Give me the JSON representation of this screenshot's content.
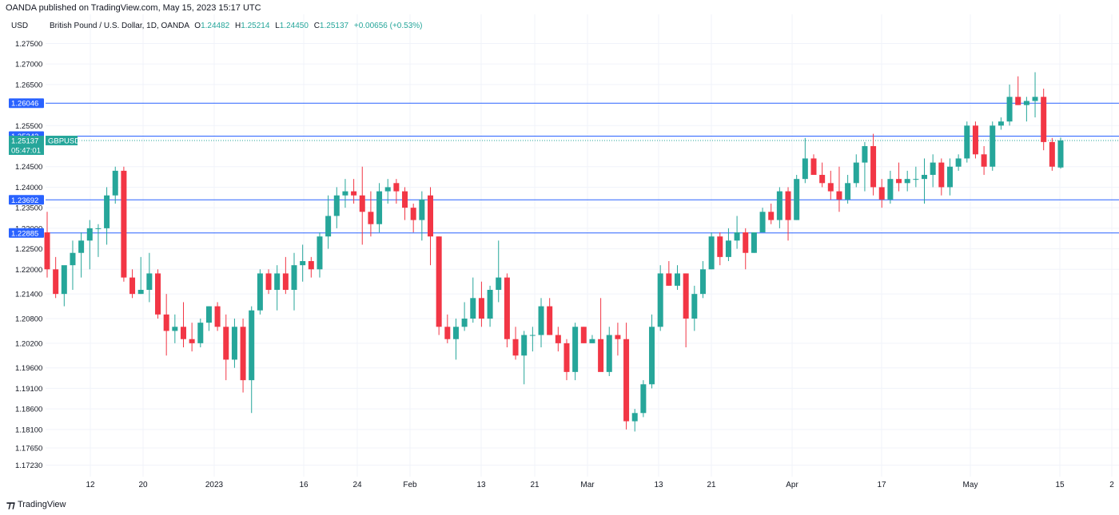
{
  "header": {
    "published": "OANDA published on TradingView.com, May 15, 2023 15:17 UTC",
    "currency": "USD",
    "instrument": "British Pound / U.S. Dollar, 1D, OANDA",
    "ohlc": {
      "o_label": "O",
      "o": "1.24482",
      "h_label": "H",
      "h": "1.25214",
      "l_label": "L",
      "l": "1.24450",
      "c_label": "C",
      "c": "1.25137",
      "change": "+0.00656 (+0.53%)"
    }
  },
  "footer": {
    "brand": "TradingView"
  },
  "colors": {
    "up": "#26a69a",
    "down": "#f23645",
    "level_line": "#2962ff",
    "label_bg": "#2962ff",
    "grid": "#f0f3fa"
  },
  "chart_data": {
    "type": "candlestick",
    "ylim": [
      1.1695,
      1.2782
    ],
    "y_ticks": [
      "1.27500",
      "1.27000",
      "1.26500",
      "1.26046",
      "1.25500",
      "1.25243",
      "1.24500",
      "1.24000",
      "1.23692",
      "1.23500",
      "1.23000",
      "1.22885",
      "1.22500",
      "1.22000",
      "1.21400",
      "1.20800",
      "1.20200",
      "1.19600",
      "1.19100",
      "1.18600",
      "1.18100",
      "1.17650",
      "1.17230"
    ],
    "x_labels": [
      "12",
      "20",
      "2023",
      "16",
      "24",
      "Feb",
      "13",
      "21",
      "Mar",
      "13",
      "21",
      "Apr",
      "17",
      "May",
      "15",
      "2"
    ],
    "horizontal_levels": [
      {
        "value": 1.26046,
        "label": "1.26046"
      },
      {
        "value": 1.25243,
        "label": "1.25243"
      },
      {
        "value": 1.23692,
        "label": "1.23692"
      },
      {
        "value": 1.22885,
        "label": "1.22885"
      }
    ],
    "last_price": {
      "value": "1.25137",
      "symbol": "GBPUSD",
      "countdown": "05:47:01"
    },
    "candles": [
      [
        1.229,
        1.234,
        1.218,
        1.22
      ],
      [
        1.22,
        1.223,
        1.213,
        1.214
      ],
      [
        1.214,
        1.22,
        1.211,
        1.221
      ],
      [
        1.221,
        1.227,
        1.215,
        1.224
      ],
      [
        1.224,
        1.229,
        1.218,
        1.227
      ],
      [
        1.227,
        1.232,
        1.22,
        1.23
      ],
      [
        1.23,
        1.231,
        1.223,
        1.23
      ],
      [
        1.23,
        1.24,
        1.226,
        1.238
      ],
      [
        1.238,
        1.245,
        1.236,
        1.244
      ],
      [
        1.244,
        1.245,
        1.217,
        1.218
      ],
      [
        1.218,
        1.22,
        1.213,
        1.214
      ],
      [
        1.214,
        1.223,
        1.214,
        1.215
      ],
      [
        1.215,
        1.224,
        1.212,
        1.219
      ],
      [
        1.219,
        1.22,
        1.208,
        1.209
      ],
      [
        1.209,
        1.214,
        1.199,
        1.205
      ],
      [
        1.205,
        1.209,
        1.202,
        1.206
      ],
      [
        1.206,
        1.212,
        1.201,
        1.203
      ],
      [
        1.203,
        1.207,
        1.2,
        1.202
      ],
      [
        1.202,
        1.208,
        1.201,
        1.207
      ],
      [
        1.207,
        1.211,
        1.205,
        1.211
      ],
      [
        1.211,
        1.212,
        1.205,
        1.206
      ],
      [
        1.206,
        1.209,
        1.193,
        1.198
      ],
      [
        1.198,
        1.208,
        1.196,
        1.206
      ],
      [
        1.206,
        1.208,
        1.19,
        1.193
      ],
      [
        1.193,
        1.211,
        1.185,
        1.21
      ],
      [
        1.21,
        1.22,
        1.209,
        1.219
      ],
      [
        1.219,
        1.22,
        1.214,
        1.215
      ],
      [
        1.215,
        1.221,
        1.21,
        1.219
      ],
      [
        1.219,
        1.223,
        1.214,
        1.215
      ],
      [
        1.215,
        1.224,
        1.21,
        1.221
      ],
      [
        1.221,
        1.226,
        1.217,
        1.222
      ],
      [
        1.222,
        1.223,
        1.218,
        1.22
      ],
      [
        1.22,
        1.229,
        1.218,
        1.228
      ],
      [
        1.228,
        1.238,
        1.225,
        1.233
      ],
      [
        1.233,
        1.24,
        1.23,
        1.238
      ],
      [
        1.238,
        1.242,
        1.235,
        1.239
      ],
      [
        1.239,
        1.242,
        1.236,
        1.238
      ],
      [
        1.238,
        1.245,
        1.226,
        1.234
      ],
      [
        1.234,
        1.239,
        1.228,
        1.231
      ],
      [
        1.231,
        1.241,
        1.229,
        1.239
      ],
      [
        1.239,
        1.242,
        1.236,
        1.24
      ],
      [
        1.241,
        1.242,
        1.236,
        1.239
      ],
      [
        1.239,
        1.24,
        1.232,
        1.235
      ],
      [
        1.235,
        1.236,
        1.229,
        1.232
      ],
      [
        1.232,
        1.239,
        1.227,
        1.237
      ],
      [
        1.238,
        1.24,
        1.221,
        1.228
      ],
      [
        1.228,
        1.228,
        1.204,
        1.206
      ],
      [
        1.206,
        1.209,
        1.202,
        1.203
      ],
      [
        1.203,
        1.208,
        1.198,
        1.206
      ],
      [
        1.206,
        1.212,
        1.205,
        1.208
      ],
      [
        1.208,
        1.218,
        1.207,
        1.213
      ],
      [
        1.213,
        1.217,
        1.206,
        1.208
      ],
      [
        1.208,
        1.216,
        1.206,
        1.215
      ],
      [
        1.215,
        1.227,
        1.212,
        1.218
      ],
      [
        1.218,
        1.219,
        1.201,
        1.203
      ],
      [
        1.203,
        1.206,
        1.198,
        1.199
      ],
      [
        1.199,
        1.205,
        1.192,
        1.204
      ],
      [
        1.204,
        1.206,
        1.2,
        1.204
      ],
      [
        1.204,
        1.213,
        1.201,
        1.211
      ],
      [
        1.211,
        1.213,
        1.204,
        1.204
      ],
      [
        1.204,
        1.206,
        1.2,
        1.202
      ],
      [
        1.202,
        1.203,
        1.193,
        1.195
      ],
      [
        1.195,
        1.207,
        1.193,
        1.206
      ],
      [
        1.206,
        1.206,
        1.202,
        1.202
      ],
      [
        1.202,
        1.204,
        1.202,
        1.203
      ],
      [
        1.203,
        1.213,
        1.196,
        1.195
      ],
      [
        1.195,
        1.206,
        1.194,
        1.204
      ],
      [
        1.204,
        1.207,
        1.199,
        1.203
      ],
      [
        1.203,
        1.207,
        1.181,
        1.183
      ],
      [
        1.183,
        1.186,
        1.1805,
        1.185
      ],
      [
        1.185,
        1.193,
        1.184,
        1.192
      ],
      [
        1.192,
        1.209,
        1.191,
        1.206
      ],
      [
        1.206,
        1.221,
        1.205,
        1.219
      ],
      [
        1.219,
        1.222,
        1.216,
        1.216
      ],
      [
        1.216,
        1.221,
        1.215,
        1.219
      ],
      [
        1.219,
        1.219,
        1.201,
        1.208
      ],
      [
        1.208,
        1.216,
        1.205,
        1.214
      ],
      [
        1.214,
        1.222,
        1.213,
        1.22
      ],
      [
        1.22,
        1.229,
        1.22,
        1.228
      ],
      [
        1.228,
        1.229,
        1.221,
        1.223
      ],
      [
        1.223,
        1.23,
        1.222,
        1.227
      ],
      [
        1.227,
        1.233,
        1.225,
        1.229
      ],
      [
        1.229,
        1.23,
        1.22,
        1.224
      ],
      [
        1.224,
        1.229,
        1.224,
        1.229
      ],
      [
        1.229,
        1.235,
        1.229,
        1.234
      ],
      [
        1.234,
        1.236,
        1.231,
        1.232
      ],
      [
        1.232,
        1.24,
        1.23,
        1.239
      ],
      [
        1.239,
        1.24,
        1.227,
        1.232
      ],
      [
        1.232,
        1.243,
        1.232,
        1.242
      ],
      [
        1.242,
        1.252,
        1.241,
        1.247
      ],
      [
        1.247,
        1.248,
        1.243,
        1.243
      ],
      [
        1.243,
        1.246,
        1.24,
        1.241
      ],
      [
        1.241,
        1.244,
        1.237,
        1.239
      ],
      [
        1.239,
        1.245,
        1.234,
        1.237
      ],
      [
        1.237,
        1.243,
        1.236,
        1.241
      ],
      [
        1.241,
        1.248,
        1.24,
        1.246
      ],
      [
        1.246,
        1.251,
        1.239,
        1.25
      ],
      [
        1.25,
        1.253,
        1.238,
        1.24
      ],
      [
        1.24,
        1.242,
        1.235,
        1.237
      ],
      [
        1.237,
        1.244,
        1.236,
        1.242
      ],
      [
        1.242,
        1.246,
        1.239,
        1.241
      ],
      [
        1.241,
        1.244,
        1.239,
        1.242
      ],
      [
        1.242,
        1.245,
        1.24,
        1.242
      ],
      [
        1.242,
        1.247,
        1.236,
        1.243
      ],
      [
        1.243,
        1.248,
        1.24,
        1.246
      ],
      [
        1.246,
        1.247,
        1.238,
        1.24
      ],
      [
        1.24,
        1.247,
        1.238,
        1.245
      ],
      [
        1.245,
        1.248,
        1.244,
        1.247
      ],
      [
        1.247,
        1.256,
        1.246,
        1.255
      ],
      [
        1.255,
        1.256,
        1.247,
        1.248
      ],
      [
        1.248,
        1.25,
        1.243,
        1.245
      ],
      [
        1.245,
        1.256,
        1.244,
        1.255
      ],
      [
        1.255,
        1.257,
        1.254,
        1.256
      ],
      [
        1.256,
        1.265,
        1.255,
        1.262
      ],
      [
        1.262,
        1.267,
        1.26,
        1.26
      ],
      [
        1.26,
        1.262,
        1.256,
        1.261
      ],
      [
        1.261,
        1.268,
        1.257,
        1.262
      ],
      [
        1.262,
        1.264,
        1.249,
        1.251
      ],
      [
        1.251,
        1.252,
        1.244,
        1.245
      ],
      [
        1.2448,
        1.2521,
        1.2445,
        1.2514
      ]
    ]
  }
}
